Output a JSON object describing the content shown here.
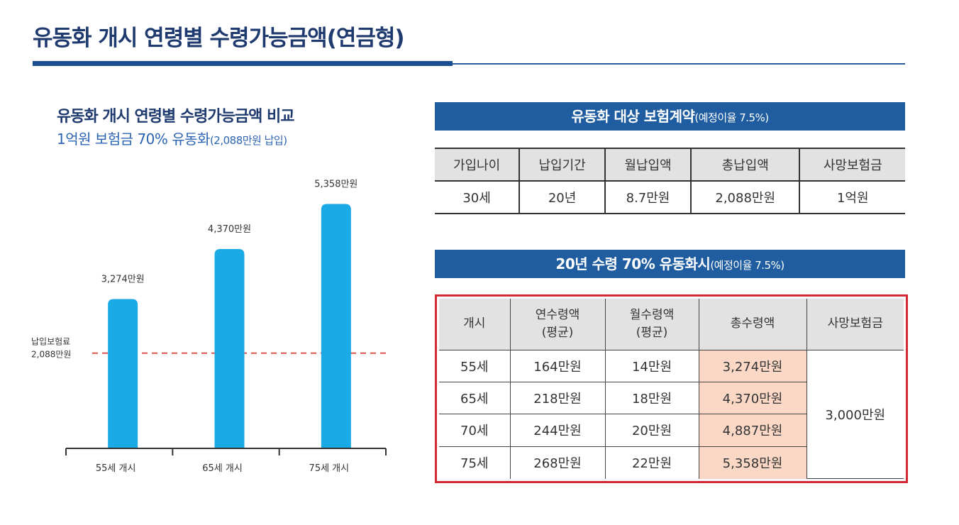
{
  "page": {
    "title": "유동화 개시 연령별 수령가능금액(연금형)"
  },
  "chart_section": {
    "title": "유동화 개시 연령별 수령가능금액 비교",
    "subtitle_main": "1억원 보험금 70% 유동화",
    "subtitle_note": "(2,088만원 납입)"
  },
  "chart_data": {
    "type": "bar",
    "title": "유동화 개시 연령별 수령가능금액 비교",
    "categories": [
      "55세 개시",
      "65세 개시",
      "75세 개시"
    ],
    "values": [
      3274,
      4370,
      5358
    ],
    "value_labels": [
      "3,274만원",
      "4,370만원",
      "5,358만원"
    ],
    "unit": "만원",
    "reference_line": {
      "value": 2088,
      "label_line1": "납입보험료",
      "label_line2": "2,088만원"
    },
    "ylim": [
      0,
      5600
    ],
    "xlabel": "",
    "ylabel": "",
    "grid": false,
    "bar_color": "#1aabe6",
    "reference_color": "#d9534f"
  },
  "contract_section": {
    "header_main": "유동화 대상 보험계약",
    "header_note": "(예정이율 7.5%)",
    "columns": [
      "가입나이",
      "납입기간",
      "월납입액",
      "총납입액",
      "사망보험금"
    ],
    "row": [
      "30세",
      "20년",
      "8.7만원",
      "2,088만원",
      "1억원"
    ]
  },
  "payout_section": {
    "header_main": "20년 수령 70% 유동화시",
    "header_note": "(예정이율 7.5%)",
    "columns": {
      "start": "개시",
      "annual_line1": "연수령액",
      "annual_line2": "(평균)",
      "monthly_line1": "월수령액",
      "monthly_line2": "(평균)",
      "total": "총수령액",
      "death": "사망보험금"
    },
    "rows": [
      {
        "start": "55세",
        "annual": "164만원",
        "monthly": "14만원",
        "total": "3,274만원"
      },
      {
        "start": "65세",
        "annual": "218만원",
        "monthly": "18만원",
        "total": "4,370만원"
      },
      {
        "start": "70세",
        "annual": "244만원",
        "monthly": "20만원",
        "total": "4,887만원"
      },
      {
        "start": "75세",
        "annual": "268만원",
        "monthly": "22만원",
        "total": "5,358만원"
      }
    ],
    "death_benefit": "3,000만원"
  },
  "colors": {
    "title": "#1f3a6e",
    "header_bar": "#1f5da0",
    "highlight_cell": "#fbd8c6",
    "highlight_border": "#d12a35"
  }
}
